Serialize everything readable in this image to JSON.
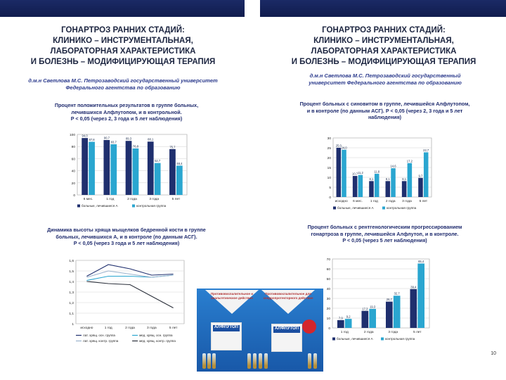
{
  "slide_left": {
    "title_lines": [
      "ГОНАРТРОЗ РАННИХ СТАДИЙ:",
      "КЛИНИКО – ИНСТРУМЕНТАЛЬНАЯ,",
      "ЛАБОРАТОРНАЯ ХАРАКТЕРИСТИКА",
      "И БОЛЕЗНЬ – МОДИФИЦИРУЮЩАЯ ТЕРАПИЯ"
    ],
    "author_lines": [
      "д.м.н Светлова М.С. Петрозаводский государственный университет",
      "Федерального агентства по образованию"
    ]
  },
  "slide_right": {
    "title_lines": [
      "ГОНАРТРОЗ РАННИХ СТАДИЙ:",
      "КЛИНИКО – ИНСТРУМЕНТАЛЬНАЯ,",
      "ЛАБОРАТОРНАЯ ХАРАКТЕРИСТИКА",
      "И БОЛЕЗНЬ – МОДИФИЦИРУЮЩАЯ ТЕРАПИЯ"
    ],
    "author_lines": [
      "д.м.н Светлова М.С. Петрозаводский государственный",
      "университет Федерального агентства по образованию"
    ],
    "page_number": "10"
  },
  "ad": {
    "tri_left": "Противовоспалительное и анальгетическое действие",
    "tri_right": "Противовоспалительное для хондропротекторного действие",
    "brand": "АЛФЛУТОП"
  },
  "colors": {
    "dark_series": "#1f2f6e",
    "light_series": "#2aa6d0",
    "topbar": "#15225a"
  },
  "chart_data": [
    {
      "type": "bar",
      "title_lines": [
        "Процент положительных результатов в группе больных,",
        "лечившихся Алфлутопом, и в контрольной.",
        "P < 0,05 (через 2, 3 года и 5 лет наблюдения)"
      ],
      "categories": [
        "6 мес.",
        "1 год",
        "2 года",
        "3 года",
        "5 лет"
      ],
      "series": [
        {
          "name": "больные, лечившиеся А",
          "values": [
            94.0,
            90.7,
            89.3,
            88.1,
            75.7
          ]
        },
        {
          "name": "контрольная группа",
          "values": [
            87.8,
            83.7,
            76.8,
            52.7,
            48.4
          ]
        }
      ],
      "value_labels": [
        [
          "94,0",
          "90,7",
          "89,3",
          "88,1",
          "75,7"
        ],
        [
          "87,8",
          "83,7",
          "76,8",
          "52,7",
          "48,4"
        ]
      ],
      "yticks": [
        "0",
        "20",
        "40",
        "60",
        "80",
        "100"
      ],
      "ylim": [
        0,
        100
      ],
      "legend": "bottom"
    },
    {
      "type": "line",
      "title_lines": [
        "Динамика высоты хряща мыщелков бедренной кости в группе",
        "больных, лечившихся А, и в контроле (по данным АСГ).",
        "P < 0,05 (через 3 года и 5 лет наблюдения)"
      ],
      "categories": [
        "исходно",
        "1 год",
        "2 года",
        "3 года",
        "5 лет"
      ],
      "series": [
        {
          "name": "лат. хрящ. осн. группа",
          "values": [
            1.45,
            1.56,
            1.52,
            1.46,
            1.47
          ]
        },
        {
          "name": "мед. хрящ. осн. группа",
          "values": [
            1.41,
            1.45,
            1.45,
            1.44,
            1.46
          ]
        },
        {
          "name": "лат. хрящ. контр. группа",
          "values": [
            1.44,
            1.5,
            1.47,
            1.44,
            1.46
          ]
        },
        {
          "name": "мед. хрящ. контр. группа",
          "values": [
            1.4,
            1.38,
            1.37,
            1.26,
            1.15
          ]
        }
      ],
      "series_colors": [
        "#1f2f6e",
        "#2aa6d0",
        "#9ab2cc",
        "#2a2f3a"
      ],
      "yticks": [
        "1",
        "1,1",
        "1,2",
        "1,3",
        "1,4",
        "1,5",
        "1,6"
      ],
      "ylim": [
        1.0,
        1.6
      ],
      "legend": "bottom"
    },
    {
      "type": "bar",
      "title_lines": [
        "Процент больных с синовитом в группе, лечившейся Алфлутопом,",
        "и в контроле (по данным АСГ). P < 0,05 (через 2, 3 года и 5 лет",
        "наблюдения)"
      ],
      "categories": [
        "исходно",
        "6 мес.",
        "1 год",
        "2 года",
        "3 года",
        "5 лет"
      ],
      "series": [
        {
          "name": "больные, лечившиеся А",
          "values": [
            25.0,
            10.7,
            8.1,
            8.1,
            8.1,
            9.7
          ]
        },
        {
          "name": "контрольная группа",
          "values": [
            24.0,
            11.2,
            11.8,
            14.6,
            17.2,
            22.7
          ]
        }
      ],
      "value_labels": [
        [
          "25,0",
          "10,7",
          "8,1",
          "8,1",
          "8,1",
          "9,7"
        ],
        [
          "24,0",
          "11,2",
          "11,8",
          "14,6",
          "17,2",
          "22,7"
        ]
      ],
      "yticks": [
        "0",
        "5",
        "10",
        "15",
        "20",
        "25",
        "30"
      ],
      "ylim": [
        0,
        30
      ],
      "legend": "bottom"
    },
    {
      "type": "bar",
      "title_lines": [
        "Процент больных с рентгенологическим прогрессированием",
        "гонартроза в группе, лечившейся Алфлутоп, и в контроле.",
        "P < 0,05 (через 5 лет наблюдения)"
      ],
      "categories": [
        "1 год",
        "2 года",
        "3 года",
        "5 лет"
      ],
      "series": [
        {
          "name": "больные, лечившиеся А",
          "values": [
            7.9,
            17.3,
            26.7,
            39.4
          ]
        },
        {
          "name": "контрольная группа",
          "values": [
            9.2,
            19.3,
            32.7,
            65.4
          ]
        }
      ],
      "value_labels": [
        [
          "7,9",
          "17,3",
          "26,7",
          "39,4"
        ],
        [
          "9,2",
          "19,3",
          "32,7",
          "65,4"
        ]
      ],
      "yticks": [
        "0",
        "10",
        "20",
        "30",
        "40",
        "50",
        "60",
        "70"
      ],
      "ylim": [
        0,
        70
      ],
      "legend": "bottom"
    }
  ]
}
